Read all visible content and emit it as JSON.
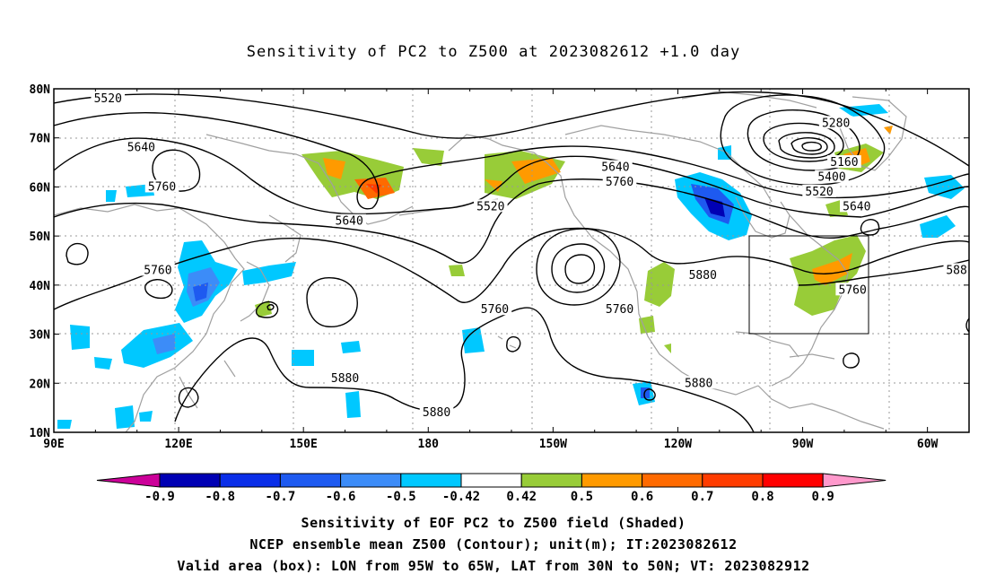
{
  "title": "Sensitivity of PC2 to Z500 at 2023082612 +1.0 day",
  "map": {
    "lat_labels": [
      "80N",
      "70N",
      "60N",
      "50N",
      "40N",
      "30N",
      "20N",
      "10N"
    ],
    "lon_labels": [
      "90E",
      "120E",
      "150E",
      "180",
      "150W",
      "120W",
      "90W",
      "60W"
    ],
    "lon_range": [
      90,
      310
    ],
    "lat_range": [
      10,
      80
    ],
    "valid_box": {
      "lon": [
        265,
        295
      ],
      "lat": [
        30,
        50
      ]
    },
    "contour_color": "#000000",
    "coast_color": "#a0a0a0",
    "contour_labels": [
      {
        "text": "5520",
        "lon": 103,
        "lat": 78
      },
      {
        "text": "5640",
        "lon": 111,
        "lat": 68
      },
      {
        "text": "5760",
        "lon": 116,
        "lat": 60
      },
      {
        "text": "5640",
        "lon": 161,
        "lat": 53
      },
      {
        "text": "5760",
        "lon": 115,
        "lat": 43
      },
      {
        "text": "5880",
        "lon": 160,
        "lat": 21
      },
      {
        "text": "5880",
        "lon": 182,
        "lat": 14
      },
      {
        "text": "5520",
        "lon": 195,
        "lat": 56
      },
      {
        "text": "5760",
        "lon": 196,
        "lat": 35
      },
      {
        "text": "5640",
        "lon": 225,
        "lat": 64
      },
      {
        "text": "5760",
        "lon": 226,
        "lat": 61
      },
      {
        "text": "5760",
        "lon": 226,
        "lat": 35
      },
      {
        "text": "5880",
        "lon": 246,
        "lat": 42
      },
      {
        "text": "5880",
        "lon": 245,
        "lat": 20
      },
      {
        "text": "5280",
        "lon": 278,
        "lat": 73
      },
      {
        "text": "5160",
        "lon": 280,
        "lat": 65
      },
      {
        "text": "5400",
        "lon": 277,
        "lat": 62
      },
      {
        "text": "5520",
        "lon": 274,
        "lat": 59
      },
      {
        "text": "5640",
        "lon": 283,
        "lat": 56
      },
      {
        "text": "5760",
        "lon": 282,
        "lat": 39
      },
      {
        "text": "588",
        "lon": 307,
        "lat": 43
      }
    ]
  },
  "colorbar": {
    "labels": [
      "-0.9",
      "-0.8",
      "-0.7",
      "-0.6",
      "-0.5",
      "-0.42",
      "0.42",
      "0.5",
      "0.6",
      "0.7",
      "0.8",
      "0.9"
    ],
    "colors": [
      "#0000b4",
      "#0a2ee8",
      "#1e5af0",
      "#3c8cf8",
      "#00c8ff",
      "#ffffff",
      "#98cc38",
      "#ff9a00",
      "#ff6a00",
      "#ff3c00",
      "#ff0000"
    ],
    "low_color": "#cc0099",
    "high_color": "#ff99cc"
  },
  "captions": [
    "Sensitivity of EOF PC2 to Z500 field (Shaded)",
    "NCEP ensemble mean Z500 (Contour); unit(m); IT:2023082612",
    "Valid area (box): LON from 95W to 65W, LAT from 30N to 50N; VT: 2023082912"
  ]
}
